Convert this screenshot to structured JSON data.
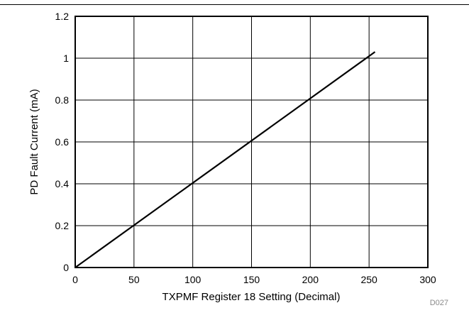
{
  "chart_data": {
    "type": "line",
    "title": "",
    "xlabel": "TXPMF Register 18 Setting (Decimal)",
    "ylabel": "PD Fault Current (mA)",
    "xlim": [
      0,
      300
    ],
    "ylim": [
      0,
      1.2
    ],
    "xticks": [
      "0",
      "50",
      "100",
      "150",
      "200",
      "250",
      "300"
    ],
    "yticks": [
      "0",
      "0.2",
      "0.4",
      "0.6",
      "0.8",
      "1",
      "1.2"
    ],
    "grid": true,
    "legend": "none",
    "series": [
      {
        "x": [
          0,
          255
        ],
        "y": [
          0,
          1.03
        ],
        "color": "#000000"
      }
    ],
    "code_label": "D027"
  }
}
